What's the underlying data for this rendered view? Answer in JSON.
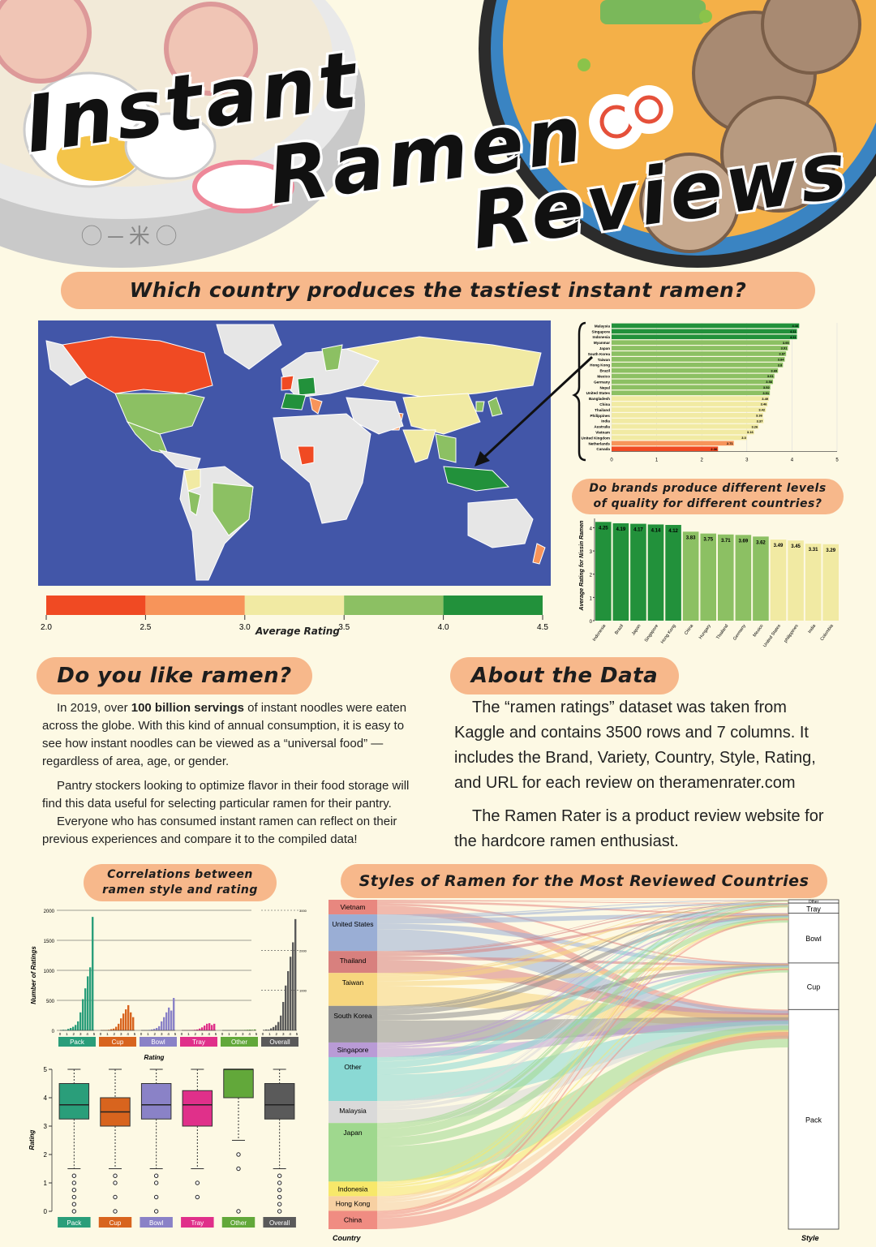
{
  "header": {
    "title_line1": "Instant",
    "title_line2": "Ramen",
    "title_line3": "Reviews"
  },
  "section1": {
    "heading": "Which country produces the tastiest instant ramen?"
  },
  "map": {
    "legend_label": "Average Rating",
    "legend_ticks": [
      "2.0",
      "2.5",
      "3.0",
      "3.5",
      "4.0",
      "4.5"
    ],
    "legend_colors": [
      "#f04a23",
      "#f7945a",
      "#f1eaa3",
      "#8cc063",
      "#22913b"
    ]
  },
  "country_chart": {
    "heading": ""
  },
  "chart_data": [
    {
      "type": "bar",
      "orientation": "horizontal",
      "categories": [
        "Malaysia",
        "Singapore",
        "Indonesia",
        "Myanmar",
        "Japan",
        "South Korea",
        "Taiwan",
        "Hong Kong",
        "Brazil",
        "Mexico",
        "Germany",
        "Nepal",
        "United States",
        "Bangladesh",
        "China",
        "Thailand",
        "Philippines",
        "India",
        "Australia",
        "Vietnam",
        "United Kingdom",
        "Netherlands",
        "Canada"
      ],
      "values": [
        4.16,
        4.11,
        4.11,
        3.95,
        3.91,
        3.87,
        3.84,
        3.8,
        3.69,
        3.61,
        3.58,
        3.52,
        3.51,
        3.49,
        3.46,
        3.42,
        3.36,
        3.37,
        3.26,
        3.16,
        3.0,
        2.71,
        2.36
      ],
      "xlim": [
        0,
        5
      ],
      "xticks": [
        "0",
        "1",
        "2",
        "3",
        "4",
        "5"
      ]
    },
    {
      "type": "bar",
      "title": "Do brands produce different levels of quality for different countries?",
      "ylabel": "Average Rating for Nissin Ramen",
      "categories": [
        "Indonesia",
        "Brazil",
        "Japan",
        "Singapore",
        "Hong Kong",
        "China",
        "Hungary",
        "Thailand",
        "Germany",
        "Mexico",
        "United States",
        "philippines",
        "India",
        "Colombia"
      ],
      "values": [
        4.25,
        4.19,
        4.17,
        4.14,
        4.12,
        3.83,
        3.75,
        3.71,
        3.69,
        3.62,
        3.49,
        3.45,
        3.31,
        3.29
      ],
      "ylim": [
        0,
        4.4
      ],
      "yticks": [
        "0",
        "1",
        "2",
        "3",
        "4"
      ]
    },
    {
      "type": "bar",
      "title": "Correlations between ramen style and rating",
      "ylabel": "Number of Ratings",
      "xlabel": "Rating",
      "yticks": [
        "0",
        "500",
        "1000",
        "1500",
        "2000"
      ],
      "overall_ticks": [
        "1000",
        "2000",
        "3000"
      ],
      "series": [
        {
          "name": "Pack",
          "values": [
            5,
            10,
            8,
            25,
            40,
            60,
            90,
            150,
            300,
            520,
            700,
            900,
            1050,
            1890
          ]
        },
        {
          "name": "Cup",
          "values": [
            3,
            5,
            4,
            10,
            20,
            30,
            60,
            110,
            200,
            280,
            350,
            420,
            300,
            220
          ]
        },
        {
          "name": "Bowl",
          "values": [
            2,
            4,
            3,
            8,
            15,
            25,
            40,
            70,
            150,
            220,
            300,
            380,
            330,
            540
          ]
        },
        {
          "name": "Tray",
          "values": [
            1,
            2,
            2,
            4,
            6,
            10,
            15,
            30,
            50,
            80,
            110,
            120,
            90,
            110
          ]
        },
        {
          "name": "Other",
          "values": [
            1,
            1,
            1,
            2,
            2,
            3,
            4,
            5,
            6,
            8,
            10,
            12,
            10,
            15
          ]
        },
        {
          "name": "Overall",
          "values": [
            12,
            22,
            18,
            50,
            85,
            130,
            210,
            370,
            710,
            1120,
            1480,
            1840,
            2200,
            2780
          ]
        }
      ]
    },
    {
      "type": "box",
      "ylabel": "Rating",
      "yticks": [
        "0",
        "1",
        "2",
        "3",
        "4",
        "5"
      ],
      "series": [
        {
          "name": "Pack",
          "min": 1.5,
          "q1": 3.25,
          "median": 3.75,
          "q3": 4.5,
          "max": 5,
          "outliers": [
            0,
            0.25,
            0.5,
            0.75,
            1,
            1.25
          ]
        },
        {
          "name": "Cup",
          "min": 1.5,
          "q1": 3.0,
          "median": 3.5,
          "q3": 4.0,
          "max": 5,
          "outliers": [
            0,
            0.5,
            1,
            1.25
          ]
        },
        {
          "name": "Bowl",
          "min": 1.5,
          "q1": 3.25,
          "median": 3.75,
          "q3": 4.5,
          "max": 5,
          "outliers": [
            0,
            0.5,
            1,
            1.25
          ]
        },
        {
          "name": "Tray",
          "min": 1.5,
          "q1": 3.0,
          "median": 3.75,
          "q3": 4.25,
          "max": 5,
          "outliers": [
            0.5,
            1
          ]
        },
        {
          "name": "Other",
          "min": 2.5,
          "q1": 4.0,
          "median": 5.0,
          "q3": 5.0,
          "max": 5,
          "outliers": [
            0,
            1.5,
            2
          ]
        },
        {
          "name": "Overall",
          "min": 1.5,
          "q1": 3.25,
          "median": 3.75,
          "q3": 4.5,
          "max": 5,
          "outliers": [
            0,
            0.25,
            0.5,
            0.75,
            1,
            1.25
          ]
        }
      ]
    },
    {
      "type": "sankey",
      "title": "Styles of Ramen for the Most Reviewed Countries",
      "xlabel_left": "Country",
      "xlabel_right": "Style",
      "countries": [
        "Vietnam",
        "United States",
        "Thailand",
        "Taiwan",
        "South Korea",
        "Singapore",
        "Other",
        "Malaysia",
        "Japan",
        "Indonesia",
        "Hong Kong",
        "China"
      ],
      "country_weights": [
        4,
        10,
        6,
        9,
        10,
        4,
        12,
        6,
        16,
        4,
        4,
        5
      ],
      "country_colors": [
        "#e8877f",
        "#9aaed5",
        "#d8807e",
        "#f7d67e",
        "#8f8f8f",
        "#b99bd6",
        "#8ad9d4",
        "#d9d9d9",
        "#9fd88e",
        "#f7e86a",
        "#f7d0a2",
        "#f08c82"
      ],
      "styles": [
        "Other",
        "Tray",
        "Bowl",
        "Cup",
        "Pack"
      ],
      "style_weights": [
        1,
        3,
        15,
        14,
        66
      ]
    }
  ],
  "nissin_chart": {
    "heading_line1": "Do brands produce different levels",
    "heading_line2": "of quality for different countries?"
  },
  "like_ramen": {
    "heading": "Do you like ramen?",
    "p1_pre": "In 2019, over ",
    "p1_bold": "100 billion servings",
    "p1_post": " of instant noodles were eaten across the globe. With this kind of annual consumption, it is easy to see how instant noodles can be viewed as a “universal food” — regardless of area, age, or gender.",
    "p2": "Pantry stockers looking to optimize flavor in their food storage will find this data useful for selecting particular ramen for their pantry.",
    "p3": "Everyone who has consumed instant ramen can reflect on their previous experiences and compare it to the compiled data!"
  },
  "about": {
    "heading": "About the Data",
    "p1": "The “ramen ratings” dataset was taken from Kaggle and contains 3500 rows and 7 columns. It includes the Brand, Variety, Country, Style, Rating, and URL for each review on theramenrater.com",
    "p2": "The Ramen Rater is a product review website for the hardcore ramen enthusiast."
  },
  "correlations": {
    "heading_line1": "Correlations between",
    "heading_line2": "ramen style and rating"
  },
  "style_colors": {
    "Pack": "#2a9e7a",
    "Cup": "#d8641e",
    "Bowl": "#8a82c7",
    "Tray": "#e0308a",
    "Other": "#62a83a",
    "Overall": "#5a5a5a"
  }
}
